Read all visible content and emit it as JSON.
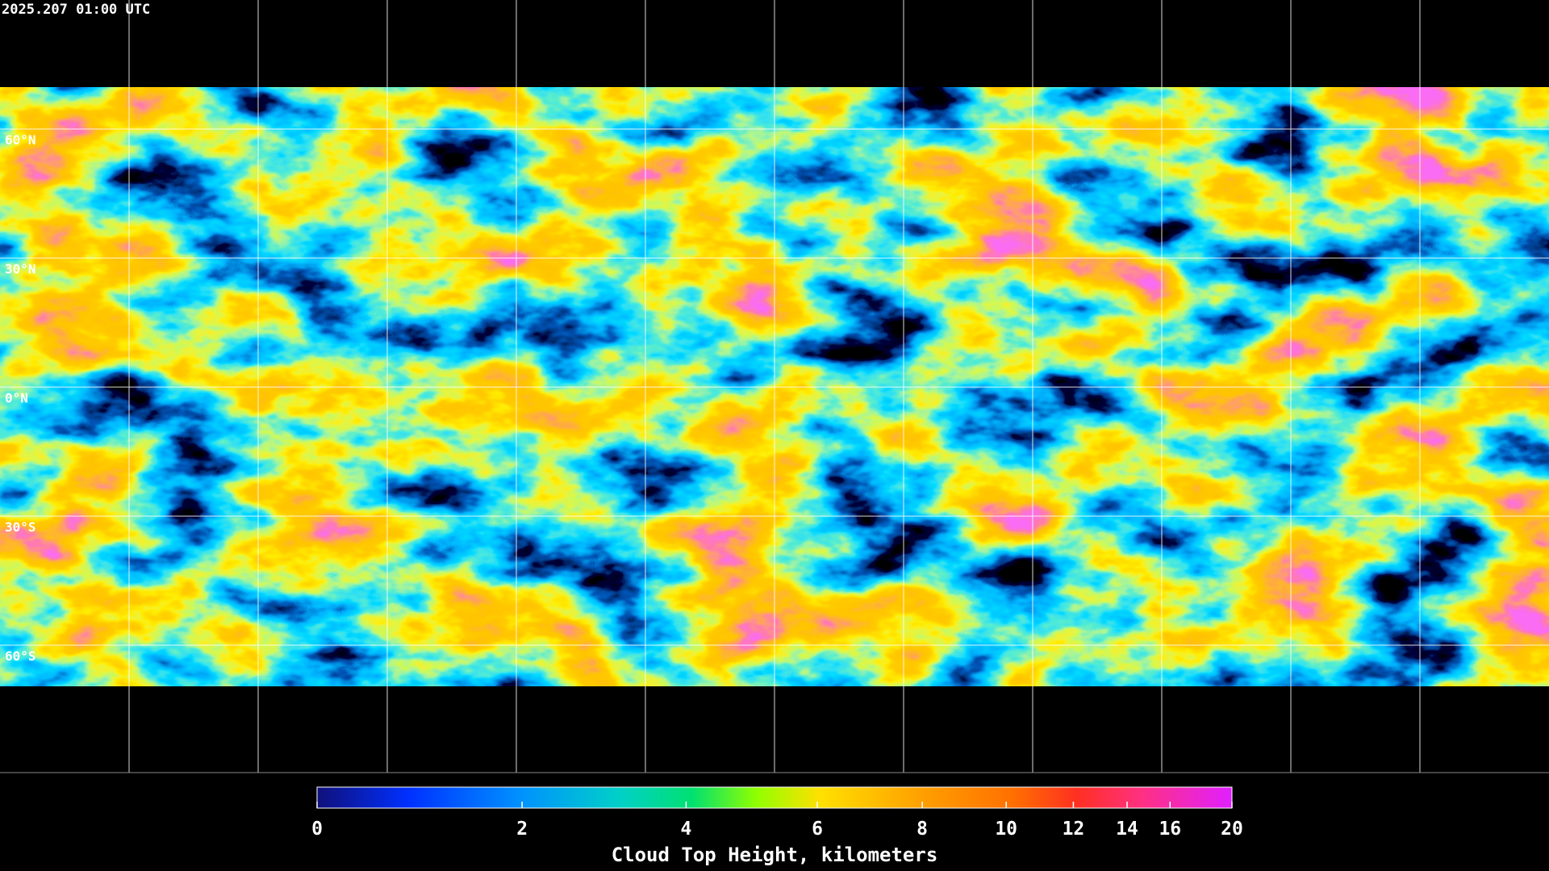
{
  "timestamp": "2025.207 01:00 UTC",
  "map": {
    "lat_labels": [
      "60°N",
      "30°N",
      "0°N",
      "30°S",
      "60°S"
    ]
  },
  "colorbar": {
    "title": "Cloud Top Height, kilometers",
    "lim": [
      0,
      20
    ],
    "ticks": [
      0,
      2,
      4,
      6,
      8,
      10,
      12,
      14,
      16,
      20
    ]
  }
}
